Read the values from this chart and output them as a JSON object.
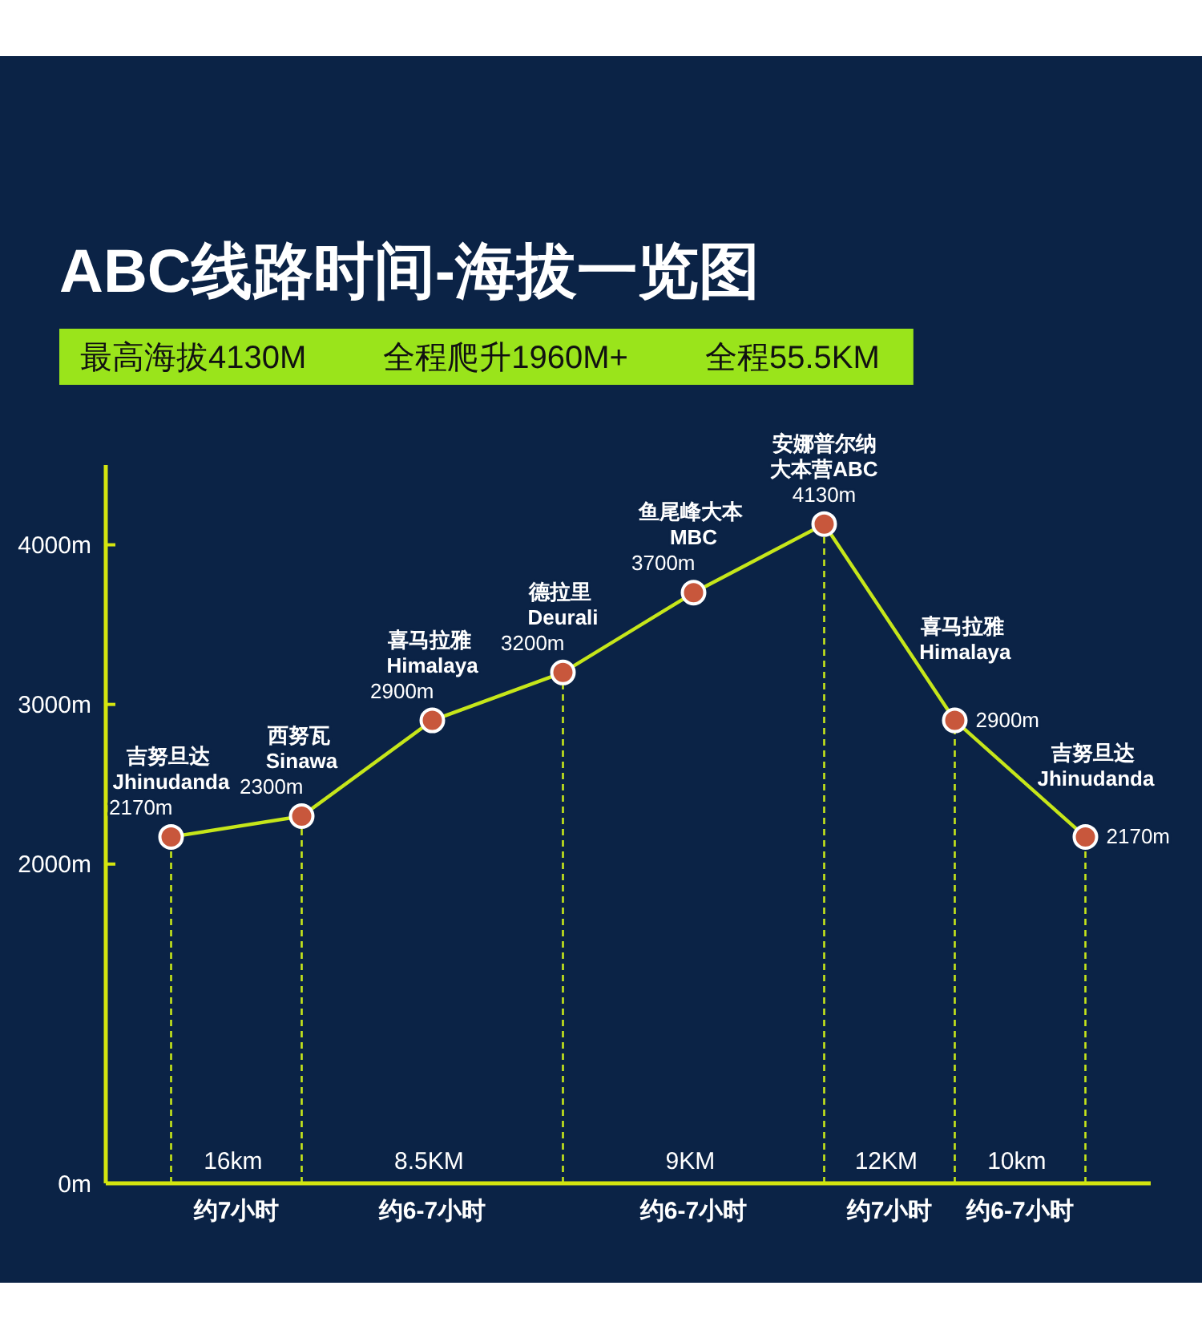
{
  "chart_data": {
    "type": "line",
    "title": "ABC线路时间-海拔一览图",
    "subtitle": "最高海拔4130M 全程爬升1960M+ 全程55.5KM",
    "annotations": [
      {
        "text": "吉努旦达 Jhinudanda",
        "y": 2170
      },
      {
        "text": "西努瓦 Sinawa",
        "y": 2300
      },
      {
        "text": "喜马拉雅 Himalaya",
        "y": 2900
      },
      {
        "text": "德拉里 Deurali",
        "y": 3200
      },
      {
        "text": "鱼尾峰大本 MBC",
        "y": 3700
      },
      {
        "text": "安娜普尔纳大本营ABC",
        "y": 4130
      },
      {
        "text": "喜马拉雅 Himalaya",
        "y": 2900
      },
      {
        "text": "吉努旦达 Jhinudanda",
        "y": 2170
      },
      "16km\n约7小时",
      "8.5KM\n约6-7小时",
      "9KM\n约6-7小时",
      "12KM\n约7小时",
      "10km\n约6-7小时"
    ],
    "categories": [
      null,
      null,
      null,
      null,
      null,
      null,
      null,
      null
    ],
    "series": [
      {
        "color": "#c6e61a",
        "marker": "none",
        "values": [
          2170,
          2300,
          2900,
          3200,
          3700,
          4130,
          2900,
          2170
        ],
        "value_labels": [
          "2170m",
          "2300m",
          "2900m",
          "3200m",
          "3700m",
          "4130m",
          "2900m",
          "2170m"
        ]
      },
      {
        "type": "lollipop",
        "color": "#c6e61a",
        "colors": [
          "#c8573c",
          "#c8573c",
          null,
          "#c8573c",
          null,
          "#c8573c",
          "#c8573c",
          "#c8573c"
        ],
        "values": [
          2170,
          2300,
          null,
          3200,
          null,
          4130,
          2900,
          2170
        ],
        "line_style": "dashed"
      },
      {
        "type": "scatter",
        "color": "#c8573c",
        "values": [
          null,
          null,
          2900,
          null,
          3700,
          null,
          null,
          null
        ]
      }
    ],
    "marker": "circle",
    "ylim": [
      0,
      4500
    ],
    "yticks": [
      {
        "value": 0,
        "label": "0m"
      },
      {
        "value": 2000,
        "label": "2000m"
      },
      {
        "value": 3000,
        "label": "3000m"
      },
      {
        "value": 4000,
        "label": "4000m"
      }
    ]
  }
}
